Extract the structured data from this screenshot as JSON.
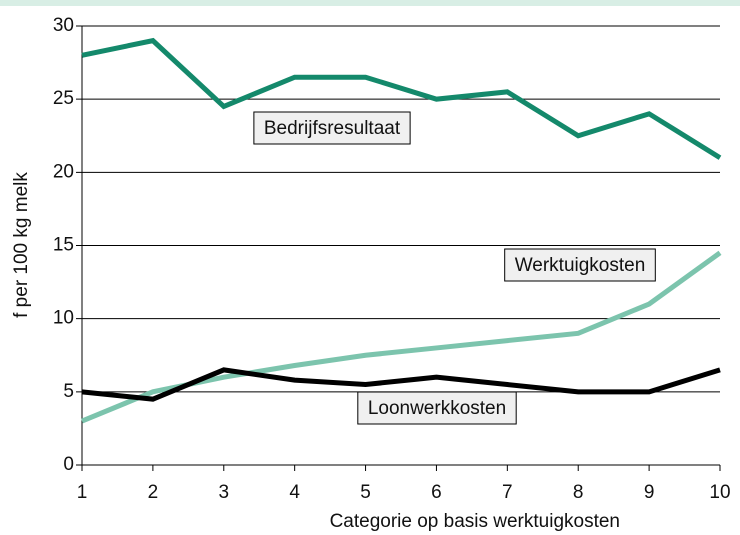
{
  "chart_data": {
    "type": "line",
    "x": [
      1,
      2,
      3,
      4,
      5,
      6,
      7,
      8,
      9,
      10
    ],
    "xlim": [
      1,
      10
    ],
    "xticks": [
      1,
      2,
      3,
      4,
      5,
      6,
      7,
      8,
      9,
      10
    ],
    "ylim": [
      0,
      30
    ],
    "yticks": [
      0,
      5,
      10,
      15,
      20,
      25,
      30
    ],
    "grid": true,
    "x_label": "Categorie op basis werktuigkosten",
    "y_label": "f per 100 kg melk",
    "series": [
      {
        "name": "Bedrijfsresultaat",
        "color": "#14896b",
        "values": [
          28,
          29,
          24.5,
          26.5,
          26.5,
          25,
          25.5,
          22.5,
          24,
          21
        ]
      },
      {
        "name": "Werktuigkosten",
        "color": "#7cc4ad",
        "values": [
          3,
          5,
          6,
          6.8,
          7.5,
          8,
          8.5,
          9,
          11,
          14.5
        ]
      },
      {
        "name": "Loonwerkkosten",
        "color": "#000000",
        "values": [
          5,
          4.5,
          6.5,
          5.8,
          5.5,
          6,
          5.5,
          5,
          5,
          6.5
        ]
      }
    ]
  }
}
